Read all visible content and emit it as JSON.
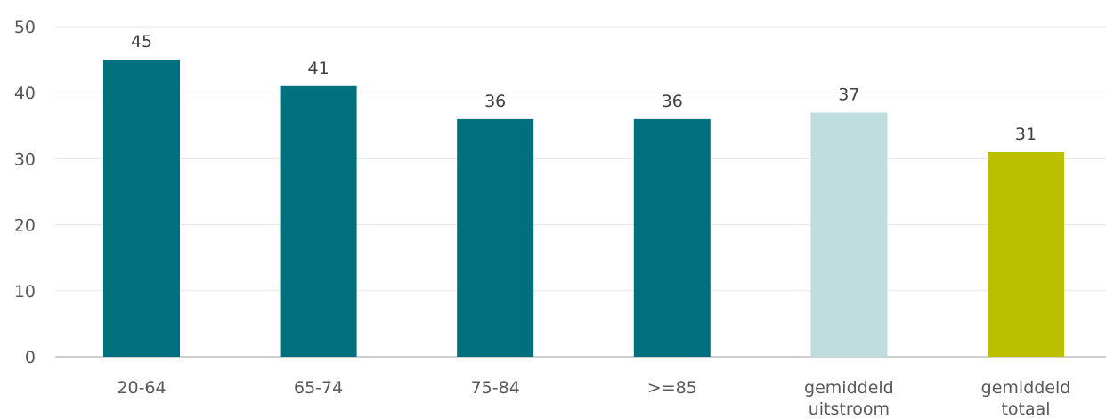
{
  "chart_data": {
    "type": "bar",
    "title": "",
    "xlabel": "",
    "ylabel": "",
    "categories": [
      [
        "20-64"
      ],
      [
        "65-74"
      ],
      [
        "75-84"
      ],
      [
        ">=85"
      ],
      [
        "gemiddeld",
        "uitstroom"
      ],
      [
        "gemiddeld",
        "totaal"
      ]
    ],
    "values": [
      45,
      41,
      36,
      36,
      37,
      31
    ],
    "data_labels": [
      "45",
      "41",
      "36",
      "36",
      "37",
      "31"
    ],
    "bar_colors": [
      "#006f7e",
      "#006f7e",
      "#006f7e",
      "#006f7e",
      "#bfdddd",
      "#bcbf00"
    ],
    "ylim": [
      0,
      50
    ],
    "y_ticks": [
      0,
      10,
      20,
      30,
      40,
      50
    ],
    "grid": true,
    "legend": "none"
  }
}
